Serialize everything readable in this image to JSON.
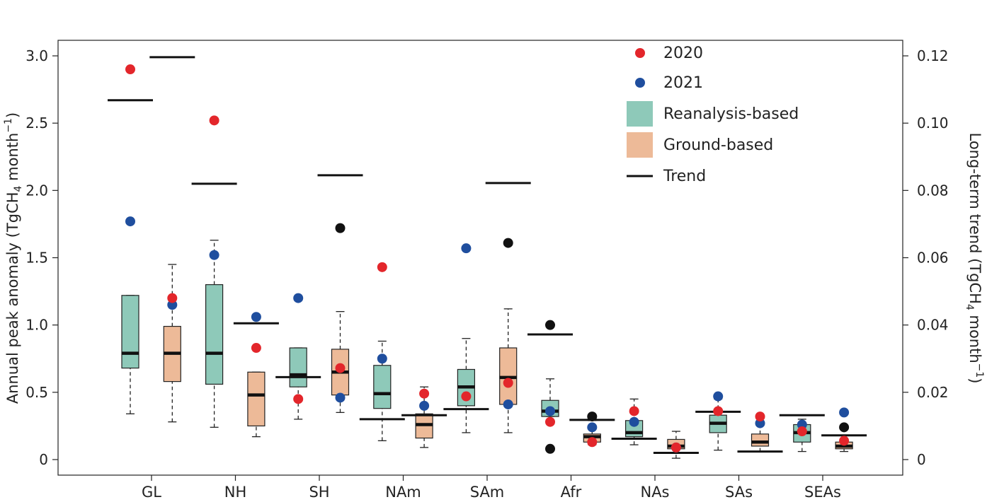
{
  "chart_data": {
    "type": "box",
    "title": "",
    "ylabel_left": "Annual peak anomaly (TgCH",
    "ylabel_left_sub": "4",
    "ylabel_left_unit": " month",
    "ylabel_left_sup": "−1",
    "ylabel_left_close": ")",
    "ylabel_right": "Long-term trend (TgCH",
    "ylabel_right_sub": "4",
    "ylabel_right_unit": " month",
    "ylabel_right_sup": "−1",
    "ylabel_right_close": ")",
    "ylim_left": [
      0,
      3.0
    ],
    "ylim_right": [
      0,
      0.12
    ],
    "yticks_left": [
      "0",
      "0.5",
      "1.0",
      "1.5",
      "2.0",
      "2.5",
      "3.0"
    ],
    "yticks_left_values": [
      0,
      0.5,
      1.0,
      1.5,
      2.0,
      2.5,
      3.0
    ],
    "yticks_right": [
      "0",
      "0.02",
      "0.04",
      "0.06",
      "0.08",
      "0.10",
      "0.12"
    ],
    "yticks_right_values": [
      0,
      0.02,
      0.04,
      0.06,
      0.08,
      0.1,
      0.12
    ],
    "categories": [
      "GL",
      "NH",
      "SH",
      "NAm",
      "SAm",
      "Afr",
      "NAs",
      "SAs",
      "SEAs"
    ],
    "legend": {
      "y2020": "2020",
      "y2021": "2021",
      "reanalysis": "Reanalysis-based",
      "ground": "Ground-based",
      "trend": "Trend"
    },
    "colors": {
      "reanalysis": "#8ec9b9",
      "ground": "#edba98",
      "y2020": "#e3262b",
      "y2021": "#1f4e9e",
      "outlier": "#111111",
      "median": "#111111"
    },
    "boxes": [
      {
        "region": "GL",
        "type": "reanalysis",
        "q1": 0.68,
        "median": 0.79,
        "q3": 1.22,
        "whisker_low": 0.34,
        "whisker_high": 1.22,
        "p2020": 2.9,
        "p2021": 1.77,
        "outlier": null,
        "trend": 0.1068
      },
      {
        "region": "GL",
        "type": "ground",
        "q1": 0.58,
        "median": 0.79,
        "q3": 0.99,
        "whisker_low": 0.28,
        "whisker_high": 1.45,
        "p2020": 1.2,
        "p2021": 1.15,
        "outlier": null,
        "trend": 0.1196
      },
      {
        "region": "NH",
        "type": "reanalysis",
        "q1": 0.56,
        "median": 0.79,
        "q3": 1.3,
        "whisker_low": 0.24,
        "whisker_high": 1.63,
        "p2020": 2.52,
        "p2021": 1.52,
        "outlier": null,
        "trend": 0.082
      },
      {
        "region": "NH",
        "type": "ground",
        "q1": 0.25,
        "median": 0.48,
        "q3": 0.65,
        "whisker_low": 0.17,
        "whisker_high": 0.65,
        "p2020": 0.83,
        "p2021": 1.06,
        "outlier": null,
        "trend": 0.0405
      },
      {
        "region": "SH",
        "type": "reanalysis",
        "q1": 0.54,
        "median": 0.63,
        "q3": 0.83,
        "whisker_low": 0.3,
        "whisker_high": 0.83,
        "p2020": 0.45,
        "p2021": 1.2,
        "outlier": null,
        "trend": 0.0245
      },
      {
        "region": "SH",
        "type": "ground",
        "q1": 0.48,
        "median": 0.65,
        "q3": 0.82,
        "whisker_low": 0.35,
        "whisker_high": 1.1,
        "p2020": 0.68,
        "p2021": 0.46,
        "outlier": 1.72,
        "trend": 0.0845
      },
      {
        "region": "NAm",
        "type": "reanalysis",
        "q1": 0.38,
        "median": 0.49,
        "q3": 0.7,
        "whisker_low": 0.14,
        "whisker_high": 0.88,
        "p2020": 1.43,
        "p2021": 0.75,
        "outlier": null,
        "trend": 0.012
      },
      {
        "region": "NAm",
        "type": "ground",
        "q1": 0.16,
        "median": 0.26,
        "q3": 0.34,
        "whisker_low": 0.09,
        "whisker_high": 0.54,
        "p2020": 0.49,
        "p2021": 0.4,
        "outlier": null,
        "trend": 0.0132
      },
      {
        "region": "SAm",
        "type": "reanalysis",
        "q1": 0.4,
        "median": 0.54,
        "q3": 0.67,
        "whisker_low": 0.2,
        "whisker_high": 0.9,
        "p2020": 0.47,
        "p2021": 1.57,
        "outlier": null,
        "trend": 0.015
      },
      {
        "region": "SAm",
        "type": "ground",
        "q1": 0.41,
        "median": 0.61,
        "q3": 0.83,
        "whisker_low": 0.2,
        "whisker_high": 1.12,
        "p2020": 0.57,
        "p2021": 0.41,
        "outlier": 1.61,
        "trend": 0.0822
      },
      {
        "region": "Afr",
        "type": "reanalysis",
        "q1": 0.32,
        "median": 0.36,
        "q3": 0.44,
        "whisker_low": 0.32,
        "whisker_high": 0.6,
        "p2020": 0.28,
        "p2021": 0.36,
        "outlier": 1.0,
        "outlier2": 0.08,
        "trend": 0.0372
      },
      {
        "region": "Afr",
        "type": "ground",
        "q1": 0.13,
        "median": 0.17,
        "q3": 0.19,
        "whisker_low": 0.11,
        "whisker_high": 0.29,
        "p2020": 0.13,
        "p2021": 0.24,
        "outlier": 0.32,
        "trend": 0.0118
      },
      {
        "region": "NAs",
        "type": "reanalysis",
        "q1": 0.17,
        "median": 0.2,
        "q3": 0.29,
        "whisker_low": 0.11,
        "whisker_high": 0.45,
        "p2020": 0.36,
        "p2021": 0.28,
        "outlier": null,
        "trend": 0.0062
      },
      {
        "region": "NAs",
        "type": "ground",
        "q1": 0.08,
        "median": 0.1,
        "q3": 0.15,
        "whisker_low": 0.01,
        "whisker_high": 0.21,
        "p2020": 0.09,
        "p2021": 0.09,
        "outlier": null,
        "trend": 0.002
      },
      {
        "region": "SAs",
        "type": "reanalysis",
        "q1": 0.2,
        "median": 0.27,
        "q3": 0.33,
        "whisker_low": 0.07,
        "whisker_high": 0.45,
        "p2020": 0.36,
        "p2021": 0.47,
        "outlier": null,
        "trend": 0.0142
      },
      {
        "region": "SAs",
        "type": "ground",
        "q1": 0.1,
        "median": 0.13,
        "q3": 0.19,
        "whisker_low": 0.06,
        "whisker_high": 0.27,
        "p2020": 0.32,
        "p2021": 0.27,
        "outlier": null,
        "trend": 0.0024
      },
      {
        "region": "SEAs",
        "type": "reanalysis",
        "q1": 0.13,
        "median": 0.2,
        "q3": 0.26,
        "whisker_low": 0.06,
        "whisker_high": 0.3,
        "p2020": 0.21,
        "p2021": 0.26,
        "outlier": null,
        "trend": 0.0132
      },
      {
        "region": "SEAs",
        "type": "ground",
        "q1": 0.08,
        "median": 0.1,
        "q3": 0.13,
        "whisker_low": 0.06,
        "whisker_high": 0.13,
        "p2020": 0.14,
        "p2021": 0.35,
        "outlier": 0.24,
        "trend": 0.0072
      }
    ]
  }
}
